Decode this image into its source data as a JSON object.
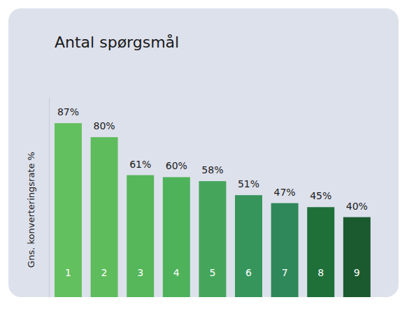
{
  "chart_data": {
    "type": "bar",
    "title": "Antal spørgsmål",
    "y_label": "Gns. konverteringsrate %",
    "categories": [
      "1",
      "2",
      "3",
      "4",
      "5",
      "6",
      "7",
      "8",
      "9"
    ],
    "values": [
      87,
      80,
      61,
      60,
      58,
      51,
      47,
      45,
      40
    ],
    "value_labels": [
      "87%",
      "80%",
      "61%",
      "60%",
      "58%",
      "51%",
      "47%",
      "45%",
      "40%"
    ],
    "colors": [
      "#63c05f",
      "#5ebc5d",
      "#55b65a",
      "#4db25a",
      "#45a65b",
      "#36955b",
      "#2e8859",
      "#1e7038",
      "#1b5a2f"
    ],
    "ylim": [
      0,
      100
    ],
    "data_labels": true,
    "tick_labels": "x",
    "grid": false
  }
}
